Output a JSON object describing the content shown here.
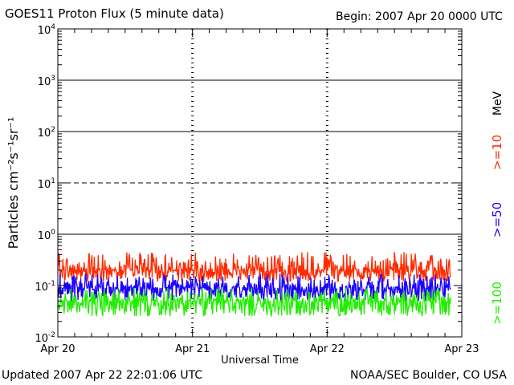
{
  "header": {
    "title": "GOES11 Proton Flux (5 minute data)",
    "begin": "Begin: 2007 Apr 20 0000 UTC"
  },
  "footer": {
    "updated": "Updated 2007 Apr 22 22:01:06 UTC",
    "credit": "NOAA/SEC Boulder, CO USA"
  },
  "chart_data": {
    "type": "line",
    "title": "GOES11 Proton Flux (5 minute data)",
    "xlabel": "Universal Time",
    "ylabel": "Particles cm⁻²s⁻¹sr⁻¹",
    "yscale": "log",
    "ylim": [
      0.01,
      10000
    ],
    "yticks": [
      {
        "base": "10",
        "exp": "-2",
        "value": 0.01
      },
      {
        "base": "10",
        "exp": "-1",
        "value": 0.1
      },
      {
        "base": "10",
        "exp": "0",
        "value": 1
      },
      {
        "base": "10",
        "exp": "1",
        "value": 10
      },
      {
        "base": "10",
        "exp": "2",
        "value": 100
      },
      {
        "base": "10",
        "exp": "3",
        "value": 1000
      },
      {
        "base": "10",
        "exp": "4",
        "value": 10000
      }
    ],
    "xlim": [
      "2007-04-20",
      "2007-04-23"
    ],
    "xticks": [
      "Apr 20",
      "Apr 21",
      "Apr 22",
      "Apr 23"
    ],
    "threshold_lines": [
      {
        "value": 1,
        "style": "solid"
      },
      {
        "value": 10,
        "style": "dashed"
      },
      {
        "value": 100,
        "style": "solid"
      },
      {
        "value": 1000,
        "style": "solid"
      }
    ],
    "units_label": "MeV",
    "series": [
      {
        "name": ">=10",
        "color": "#ff2a00",
        "typical": 0.2,
        "low": 0.12,
        "high": 0.45
      },
      {
        "name": ">=50",
        "color": "#1a00ff",
        "typical": 0.09,
        "low": 0.05,
        "high": 0.17
      },
      {
        "name": ">=100",
        "color": "#22ee00",
        "typical": 0.05,
        "low": 0.025,
        "high": 0.09
      }
    ]
  }
}
